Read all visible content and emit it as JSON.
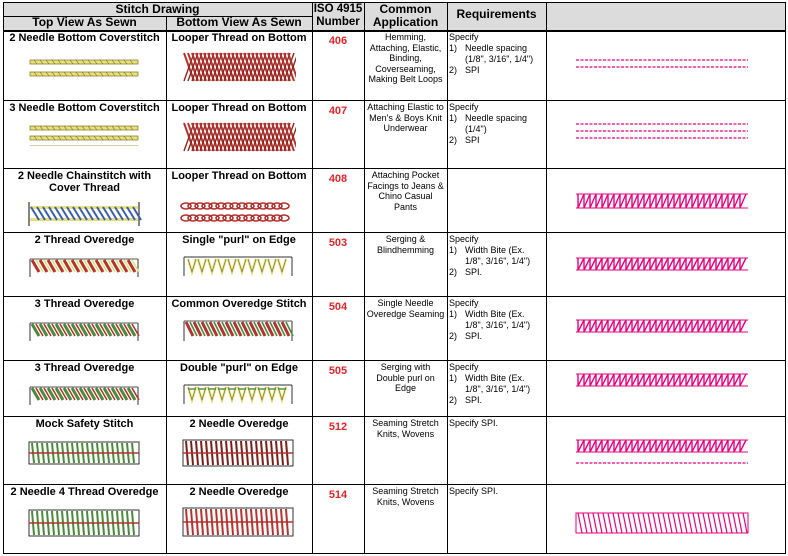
{
  "headers": {
    "stitch_drawing": "Stitch Drawing",
    "top_view": "Top View As Sewn",
    "bottom_view": "Bottom View As Sewn",
    "iso": "ISO 4915 Number",
    "application": "Common Application",
    "requirements": "Requirements"
  },
  "colors": {
    "header_bg": "#dcdcdc",
    "iso_red": "#e0262b",
    "stitch_magenta": "#e6007e",
    "looper_red": "#b5332e",
    "thread_yellow": "#e8e07a",
    "thread_green": "#4a8a3a",
    "thread_blue": "#3a5fb0"
  },
  "rows": [
    {
      "top_label": "2 Needle Bottom Coverstitch",
      "bottom_label": "Looper Thread on Bottom",
      "iso": "406",
      "application": "Hemming, Attaching, Elastic, Binding, Coverseaming, Making Belt Loops",
      "requirements": [
        "Specify",
        "1)\tNeedle spacing (1/8\", 3/16\", 1/4\")",
        "2)\tSPI"
      ],
      "top_icon": "two-parallel-yellow-stitches",
      "bottom_icon": "red-looper-net",
      "sample_icon": "two-dashed-magenta-lines"
    },
    {
      "top_label": "3 Needle Bottom Coverstitch",
      "bottom_label": "Looper Thread on Bottom",
      "iso": "407",
      "application": "Attaching Elastic to Men's & Boys Knit Underwear",
      "requirements": [
        "Specify",
        "1)\tNeedle spacing (1/4\")",
        "2)\tSPI"
      ],
      "top_icon": "three-parallel-yellow-stitches",
      "bottom_icon": "red-looper-net-wide",
      "sample_icon": "three-dashed-magenta-lines"
    },
    {
      "top_label": "2 Needle Chainstitch with Cover Thread",
      "bottom_label": "Looper Thread on Bottom",
      "iso": "408",
      "application": "Attaching Pocket Facings to Jeans & Chino Casual Pants",
      "requirements": [],
      "top_icon": "blue-yellow-cover-thread",
      "bottom_icon": "red-chain-loops",
      "sample_icon": "magenta-coil"
    },
    {
      "top_label": "2 Thread Overedge",
      "bottom_label": "Single \"purl\" on Edge",
      "iso": "503",
      "application": "Serging & Blindhemming",
      "requirements": [
        "Specify",
        "1)\tWidth Bite (Ex. 1/8\", 3/16\", 1/4\")",
        "2)\tSPI."
      ],
      "top_icon": "red-yellow-overedge",
      "bottom_icon": "yellow-purl-edge",
      "sample_icon": "magenta-coil"
    },
    {
      "top_label": "3 Thread Overedge",
      "bottom_label": "Common Overedge Stitch",
      "iso": "504",
      "application": "Single Needle Overedge Seaming",
      "requirements": [
        "Specify",
        "1)\tWidth Bite (Ex. 1/8\", 3/16\", 1/4\")",
        "2)\tSPI."
      ],
      "top_icon": "green-red-overedge",
      "bottom_icon": "red-green-overedge",
      "sample_icon": "magenta-coil"
    },
    {
      "top_label": "3 Thread Overedge",
      "bottom_label": "Double \"purl\" on Edge",
      "iso": "505",
      "application": "Serging with Double purl on Edge",
      "requirements": [
        "Specify",
        "1)\tWidth Bite (Ex. 1/8\", 3/16\", 1/4\")",
        "2)\tSPI."
      ],
      "top_icon": "green-red-overedge",
      "bottom_icon": "yellow-double-purl",
      "sample_icon": "magenta-coil"
    },
    {
      "top_label": "Mock Safety Stitch",
      "bottom_label": "2 Needle Overedge",
      "iso": "512",
      "application": "Seaming Stretch Knits, Wovens",
      "requirements": [
        "Specify SPI."
      ],
      "top_icon": "green-mock-safety",
      "bottom_icon": "red-two-needle-overedge",
      "sample_icon": "magenta-coil-with-dashes"
    },
    {
      "top_label": "2 Needle 4 Thread Overedge",
      "bottom_label": "2 Needle Overedge",
      "iso": "514",
      "application": "Seaming Stretch Knits, Wovens",
      "requirements": [
        "Specify SPI."
      ],
      "top_icon": "green-four-thread-overedge",
      "bottom_icon": "red-green-four-thread",
      "sample_icon": "magenta-wide-coil"
    }
  ]
}
